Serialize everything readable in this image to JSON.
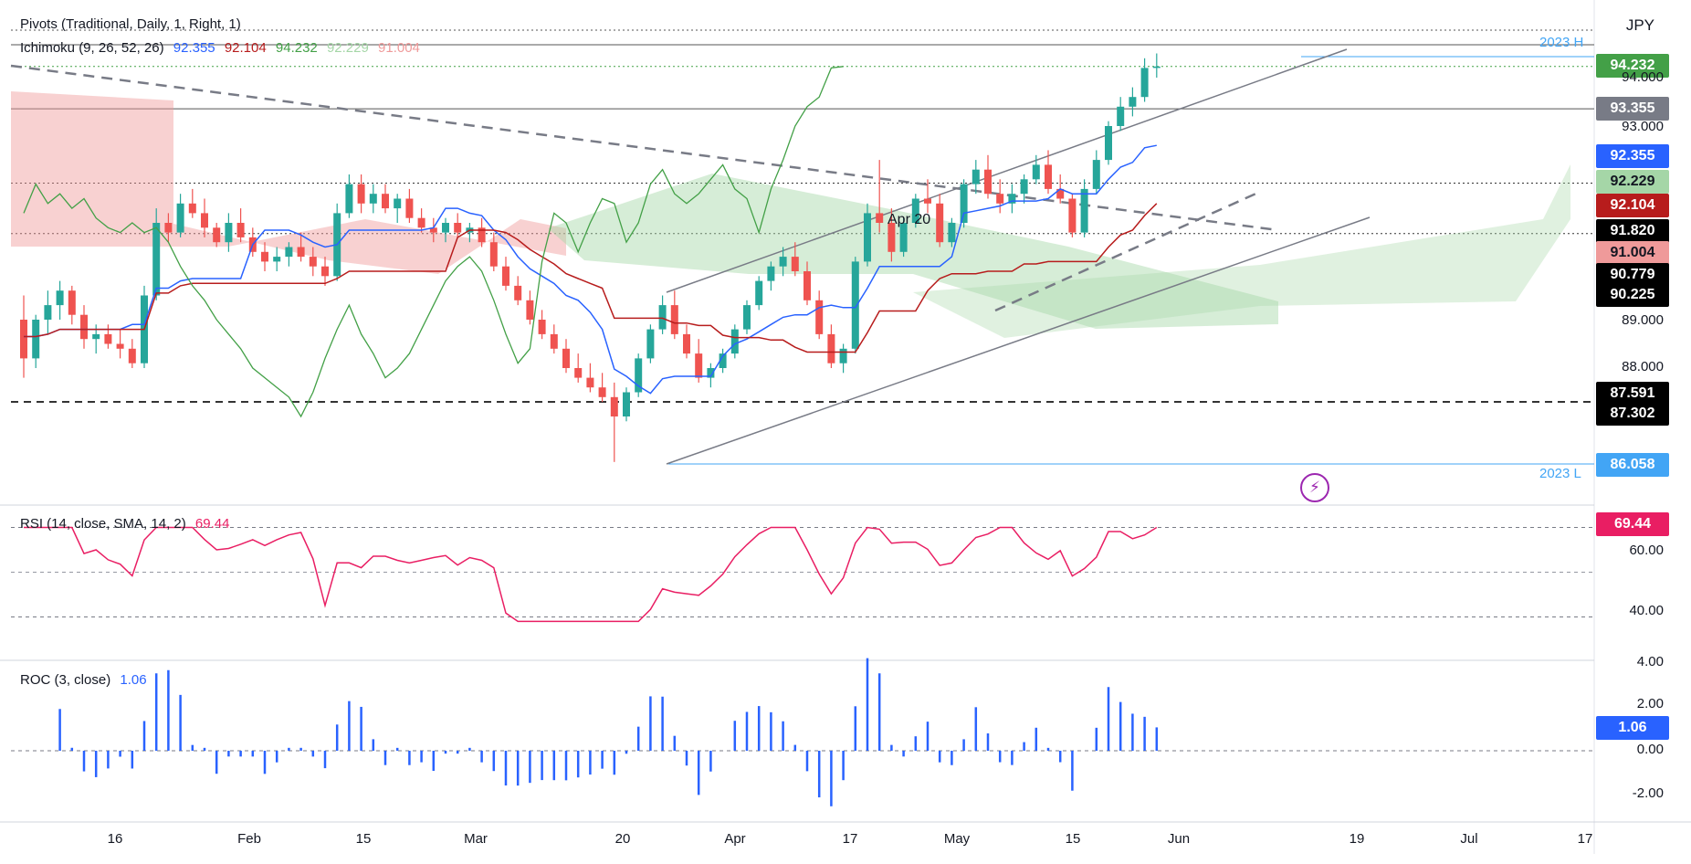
{
  "legends": {
    "pivots": "Pivots (Traditional, Daily, 1, Right, 1)",
    "ichimoku_name": "Ichimoku (9, 26, 52, 26)",
    "ichimoku_values": [
      "92.355",
      "92.104",
      "94.232",
      "92.229",
      "91.004"
    ],
    "rsi_name": "RSI (14, close, SMA, 14, 2)",
    "rsi_value": "69.44",
    "roc_name": "ROC (3, close)",
    "roc_value": "1.06"
  },
  "currency": "JPY",
  "annotations": {
    "high_label": "2023 H",
    "low_label": "2023 L",
    "apr20": "Apr 20"
  },
  "price_tags": [
    {
      "text": "94.232",
      "color": "#43a047"
    },
    {
      "text": "93.355",
      "color": "#787b86"
    },
    {
      "text": "92.355",
      "color": "#2962ff"
    },
    {
      "text": "92.229",
      "color": "#a5d6a7",
      "textColor": "#131722"
    },
    {
      "text": "92.104",
      "color": "#b71c1c"
    },
    {
      "text": "91.820",
      "color": "#000000"
    },
    {
      "text": "91.004",
      "color": "#ef9a9a",
      "textColor": "#131722"
    },
    {
      "text": "90.779",
      "color": "#000000"
    },
    {
      "text": "90.225",
      "color": "#000000"
    },
    {
      "text": "87.591",
      "color": "#000000"
    },
    {
      "text": "87.302",
      "color": "#000000"
    },
    {
      "text": "86.058",
      "color": "#42a5f5"
    }
  ],
  "price_ticks": [
    "94.000",
    "93.000",
    "89.000",
    "88.000"
  ],
  "rsi_tag": {
    "text": "69.44",
    "color": "#e91e63"
  },
  "rsi_ticks": [
    "60.00",
    "40.00"
  ],
  "roc_tag": {
    "text": "1.06",
    "color": "#2962ff"
  },
  "roc_ticks": [
    "4.00",
    "2.00",
    "0.00",
    "-2.00"
  ],
  "x_ticks": [
    "16",
    "Feb",
    "15",
    "Mar",
    "20",
    "Apr",
    "17",
    "May",
    "15",
    "Jun",
    "19",
    "Jul",
    "17"
  ],
  "colors": {
    "up": "#26a69a",
    "down": "#ef5350",
    "tenkan": "#2962ff",
    "kijun": "#b71c1c",
    "chikou": "#43a047",
    "cloud_green": "#a5d6a7",
    "cloud_red": "#ef9a9a",
    "rsi": "#e91e63",
    "roc": "#2962ff"
  },
  "chart_data": {
    "type": "candlestick",
    "symbol_currency": "JPY",
    "period": "Daily",
    "date_axis": [
      "16",
      "Feb",
      "15",
      "Mar",
      "20",
      "Apr",
      "17",
      "May",
      "15",
      "Jun",
      "19",
      "Jul",
      "17"
    ],
    "ohlc": [
      [
        89.0,
        89.5,
        87.8,
        88.2
      ],
      [
        88.2,
        89.1,
        88.0,
        89.0
      ],
      [
        89.0,
        89.6,
        88.7,
        89.3
      ],
      [
        89.3,
        89.8,
        89.0,
        89.6
      ],
      [
        89.6,
        89.7,
        88.9,
        89.1
      ],
      [
        89.1,
        89.3,
        88.4,
        88.6
      ],
      [
        88.6,
        88.9,
        88.3,
        88.7
      ],
      [
        88.7,
        88.9,
        88.4,
        88.5
      ],
      [
        88.5,
        88.8,
        88.2,
        88.4
      ],
      [
        88.4,
        88.6,
        88.0,
        88.1
      ],
      [
        88.1,
        89.7,
        88.0,
        89.5
      ],
      [
        89.5,
        91.3,
        89.4,
        91.0
      ],
      [
        91.0,
        91.2,
        90.6,
        90.8
      ],
      [
        90.8,
        91.6,
        90.7,
        91.4
      ],
      [
        91.4,
        91.7,
        91.1,
        91.2
      ],
      [
        91.2,
        91.5,
        90.7,
        90.9
      ],
      [
        90.9,
        91.0,
        90.5,
        90.6
      ],
      [
        90.6,
        91.2,
        90.4,
        91.0
      ],
      [
        91.0,
        91.3,
        90.6,
        90.7
      ],
      [
        90.7,
        90.9,
        90.3,
        90.4
      ],
      [
        90.4,
        90.6,
        90.0,
        90.2
      ],
      [
        90.2,
        90.5,
        90.0,
        90.3
      ],
      [
        90.3,
        90.6,
        90.1,
        90.5
      ],
      [
        90.5,
        90.8,
        90.2,
        90.3
      ],
      [
        90.3,
        90.5,
        89.9,
        90.1
      ],
      [
        90.1,
        90.3,
        89.7,
        89.9
      ],
      [
        89.9,
        91.4,
        89.8,
        91.2
      ],
      [
        91.2,
        92.0,
        91.1,
        91.8
      ],
      [
        91.8,
        92.0,
        91.2,
        91.4
      ],
      [
        91.4,
        91.8,
        91.2,
        91.6
      ],
      [
        91.6,
        91.8,
        91.2,
        91.3
      ],
      [
        91.3,
        91.6,
        91.0,
        91.5
      ],
      [
        91.5,
        91.7,
        91.0,
        91.1
      ],
      [
        91.1,
        91.3,
        90.8,
        90.9
      ],
      [
        90.9,
        91.1,
        90.6,
        90.8
      ],
      [
        90.8,
        91.1,
        90.6,
        91.0
      ],
      [
        91.0,
        91.2,
        90.7,
        90.8
      ],
      [
        90.8,
        91.0,
        90.6,
        90.9
      ],
      [
        90.9,
        91.1,
        90.5,
        90.6
      ],
      [
        90.6,
        90.8,
        90.0,
        90.1
      ],
      [
        90.1,
        90.3,
        89.6,
        89.7
      ],
      [
        89.7,
        89.9,
        89.3,
        89.4
      ],
      [
        89.4,
        89.6,
        88.9,
        89.0
      ],
      [
        89.0,
        89.2,
        88.6,
        88.7
      ],
      [
        88.7,
        88.9,
        88.3,
        88.4
      ],
      [
        88.4,
        88.6,
        87.9,
        88.0
      ],
      [
        88.0,
        88.3,
        87.7,
        87.8
      ],
      [
        87.8,
        88.1,
        87.5,
        87.6
      ],
      [
        87.6,
        87.9,
        87.3,
        87.4
      ],
      [
        87.4,
        87.7,
        86.06,
        87.0
      ],
      [
        87.0,
        87.6,
        86.9,
        87.5
      ],
      [
        87.5,
        88.3,
        87.4,
        88.2
      ],
      [
        88.2,
        88.9,
        88.1,
        88.8
      ],
      [
        88.8,
        89.5,
        88.7,
        89.3
      ],
      [
        89.3,
        89.6,
        88.6,
        88.7
      ],
      [
        88.7,
        88.9,
        88.2,
        88.3
      ],
      [
        88.3,
        88.6,
        87.7,
        87.8
      ],
      [
        87.8,
        88.1,
        87.6,
        88.0
      ],
      [
        88.0,
        88.4,
        87.9,
        88.3
      ],
      [
        88.3,
        88.9,
        88.2,
        88.8
      ],
      [
        88.8,
        89.4,
        88.7,
        89.3
      ],
      [
        89.3,
        89.9,
        89.2,
        89.8
      ],
      [
        89.8,
        90.2,
        89.6,
        90.1
      ],
      [
        90.1,
        90.5,
        89.9,
        90.3
      ],
      [
        90.3,
        90.6,
        89.9,
        90.0
      ],
      [
        90.0,
        90.2,
        89.3,
        89.4
      ],
      [
        89.4,
        89.6,
        88.6,
        88.7
      ],
      [
        88.7,
        88.9,
        88.0,
        88.1
      ],
      [
        88.1,
        88.5,
        87.9,
        88.4
      ],
      [
        88.4,
        90.3,
        88.3,
        90.2
      ],
      [
        90.2,
        91.4,
        90.1,
        91.2
      ],
      [
        91.2,
        92.3,
        90.8,
        91.0
      ],
      [
        91.0,
        91.3,
        90.2,
        90.4
      ],
      [
        90.4,
        91.1,
        90.3,
        91.0
      ],
      [
        91.0,
        91.6,
        90.9,
        91.5
      ],
      [
        91.5,
        91.9,
        91.2,
        91.4
      ],
      [
        91.4,
        91.6,
        90.5,
        90.6
      ],
      [
        90.6,
        91.1,
        90.5,
        91.0
      ],
      [
        91.0,
        91.9,
        90.9,
        91.8
      ],
      [
        91.8,
        92.3,
        91.6,
        92.1
      ],
      [
        92.1,
        92.4,
        91.5,
        91.6
      ],
      [
        91.6,
        91.9,
        91.2,
        91.4
      ],
      [
        91.4,
        91.8,
        91.2,
        91.6
      ],
      [
        91.6,
        92.0,
        91.4,
        91.9
      ],
      [
        91.9,
        92.4,
        91.8,
        92.2
      ],
      [
        92.2,
        92.5,
        91.6,
        91.7
      ],
      [
        91.7,
        92.0,
        91.4,
        91.5
      ],
      [
        91.5,
        91.6,
        90.7,
        90.8
      ],
      [
        90.8,
        91.9,
        90.7,
        91.7
      ],
      [
        91.7,
        92.5,
        91.6,
        92.3
      ],
      [
        92.3,
        93.1,
        92.2,
        93.0
      ],
      [
        93.0,
        93.6,
        92.9,
        93.4
      ],
      [
        93.4,
        93.8,
        93.2,
        93.6
      ],
      [
        93.6,
        94.4,
        93.5,
        94.2
      ],
      [
        94.2,
        94.5,
        94.0,
        94.23
      ]
    ],
    "ichimoku": {
      "tenkan": 92.355,
      "kijun": 92.104,
      "chikou": 94.232,
      "senkou_a": 92.229,
      "senkou_b": 91.004
    },
    "pivot_levels": [
      94.232,
      93.355,
      91.82,
      90.779,
      90.225,
      87.591,
      87.302
    ],
    "year_high": "2023 H",
    "year_low": 86.058,
    "rsi": {
      "name": "RSI (14, close, SMA, 14, 2)",
      "last": 69.44,
      "levels": [
        70,
        50,
        30
      ]
    },
    "roc": {
      "name": "ROC (3, close)",
      "last": 1.06
    }
  }
}
